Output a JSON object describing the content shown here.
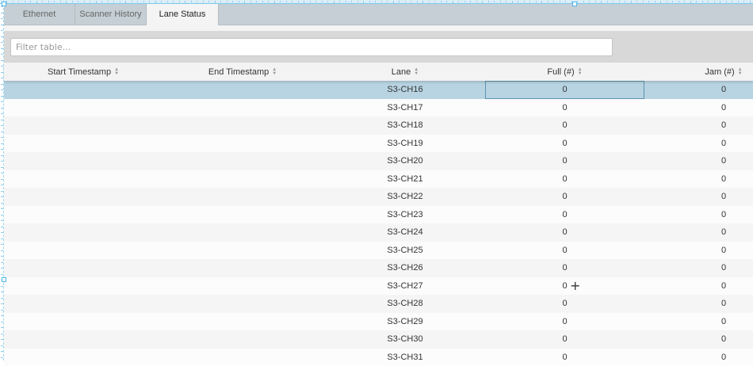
{
  "tabs": [
    {
      "label": "Ethernet",
      "active": false
    },
    {
      "label": "Scanner History",
      "active": false
    },
    {
      "label": "Lane Status",
      "active": true
    }
  ],
  "filter": {
    "placeholder": "Filter table...",
    "value": ""
  },
  "table": {
    "columns": [
      "Start Timestamp",
      "End Timestamp",
      "Lane",
      "Full (#)",
      "Jam (#)"
    ],
    "selected_row": 0,
    "rows": [
      [
        "",
        "",
        "S3-CH16",
        "0",
        "0"
      ],
      [
        "",
        "",
        "S3-CH17",
        "0",
        "0"
      ],
      [
        "",
        "",
        "S3-CH18",
        "0",
        "0"
      ],
      [
        "",
        "",
        "S3-CH19",
        "0",
        "0"
      ],
      [
        "",
        "",
        "S3-CH20",
        "0",
        "0"
      ],
      [
        "",
        "",
        "S3-CH21",
        "0",
        "0"
      ],
      [
        "",
        "",
        "S3-CH22",
        "0",
        "0"
      ],
      [
        "",
        "",
        "S3-CH23",
        "0",
        "0"
      ],
      [
        "",
        "",
        "S3-CH24",
        "0",
        "0"
      ],
      [
        "",
        "",
        "S3-CH25",
        "0",
        "0"
      ],
      [
        "",
        "",
        "S3-CH26",
        "0",
        "0"
      ],
      [
        "",
        "",
        "S3-CH27",
        "0",
        "0"
      ],
      [
        "",
        "",
        "S3-CH28",
        "0",
        "0"
      ],
      [
        "",
        "",
        "S3-CH29",
        "0",
        "0"
      ],
      [
        "",
        "",
        "S3-CH30",
        "0",
        "0"
      ],
      [
        "",
        "",
        "S3-CH31",
        "0",
        "0"
      ]
    ]
  },
  "colors": {
    "selected_row": "#b8d4e2",
    "tab_bar": "#c5cfd5",
    "toolbar": "#d8d8d8"
  }
}
